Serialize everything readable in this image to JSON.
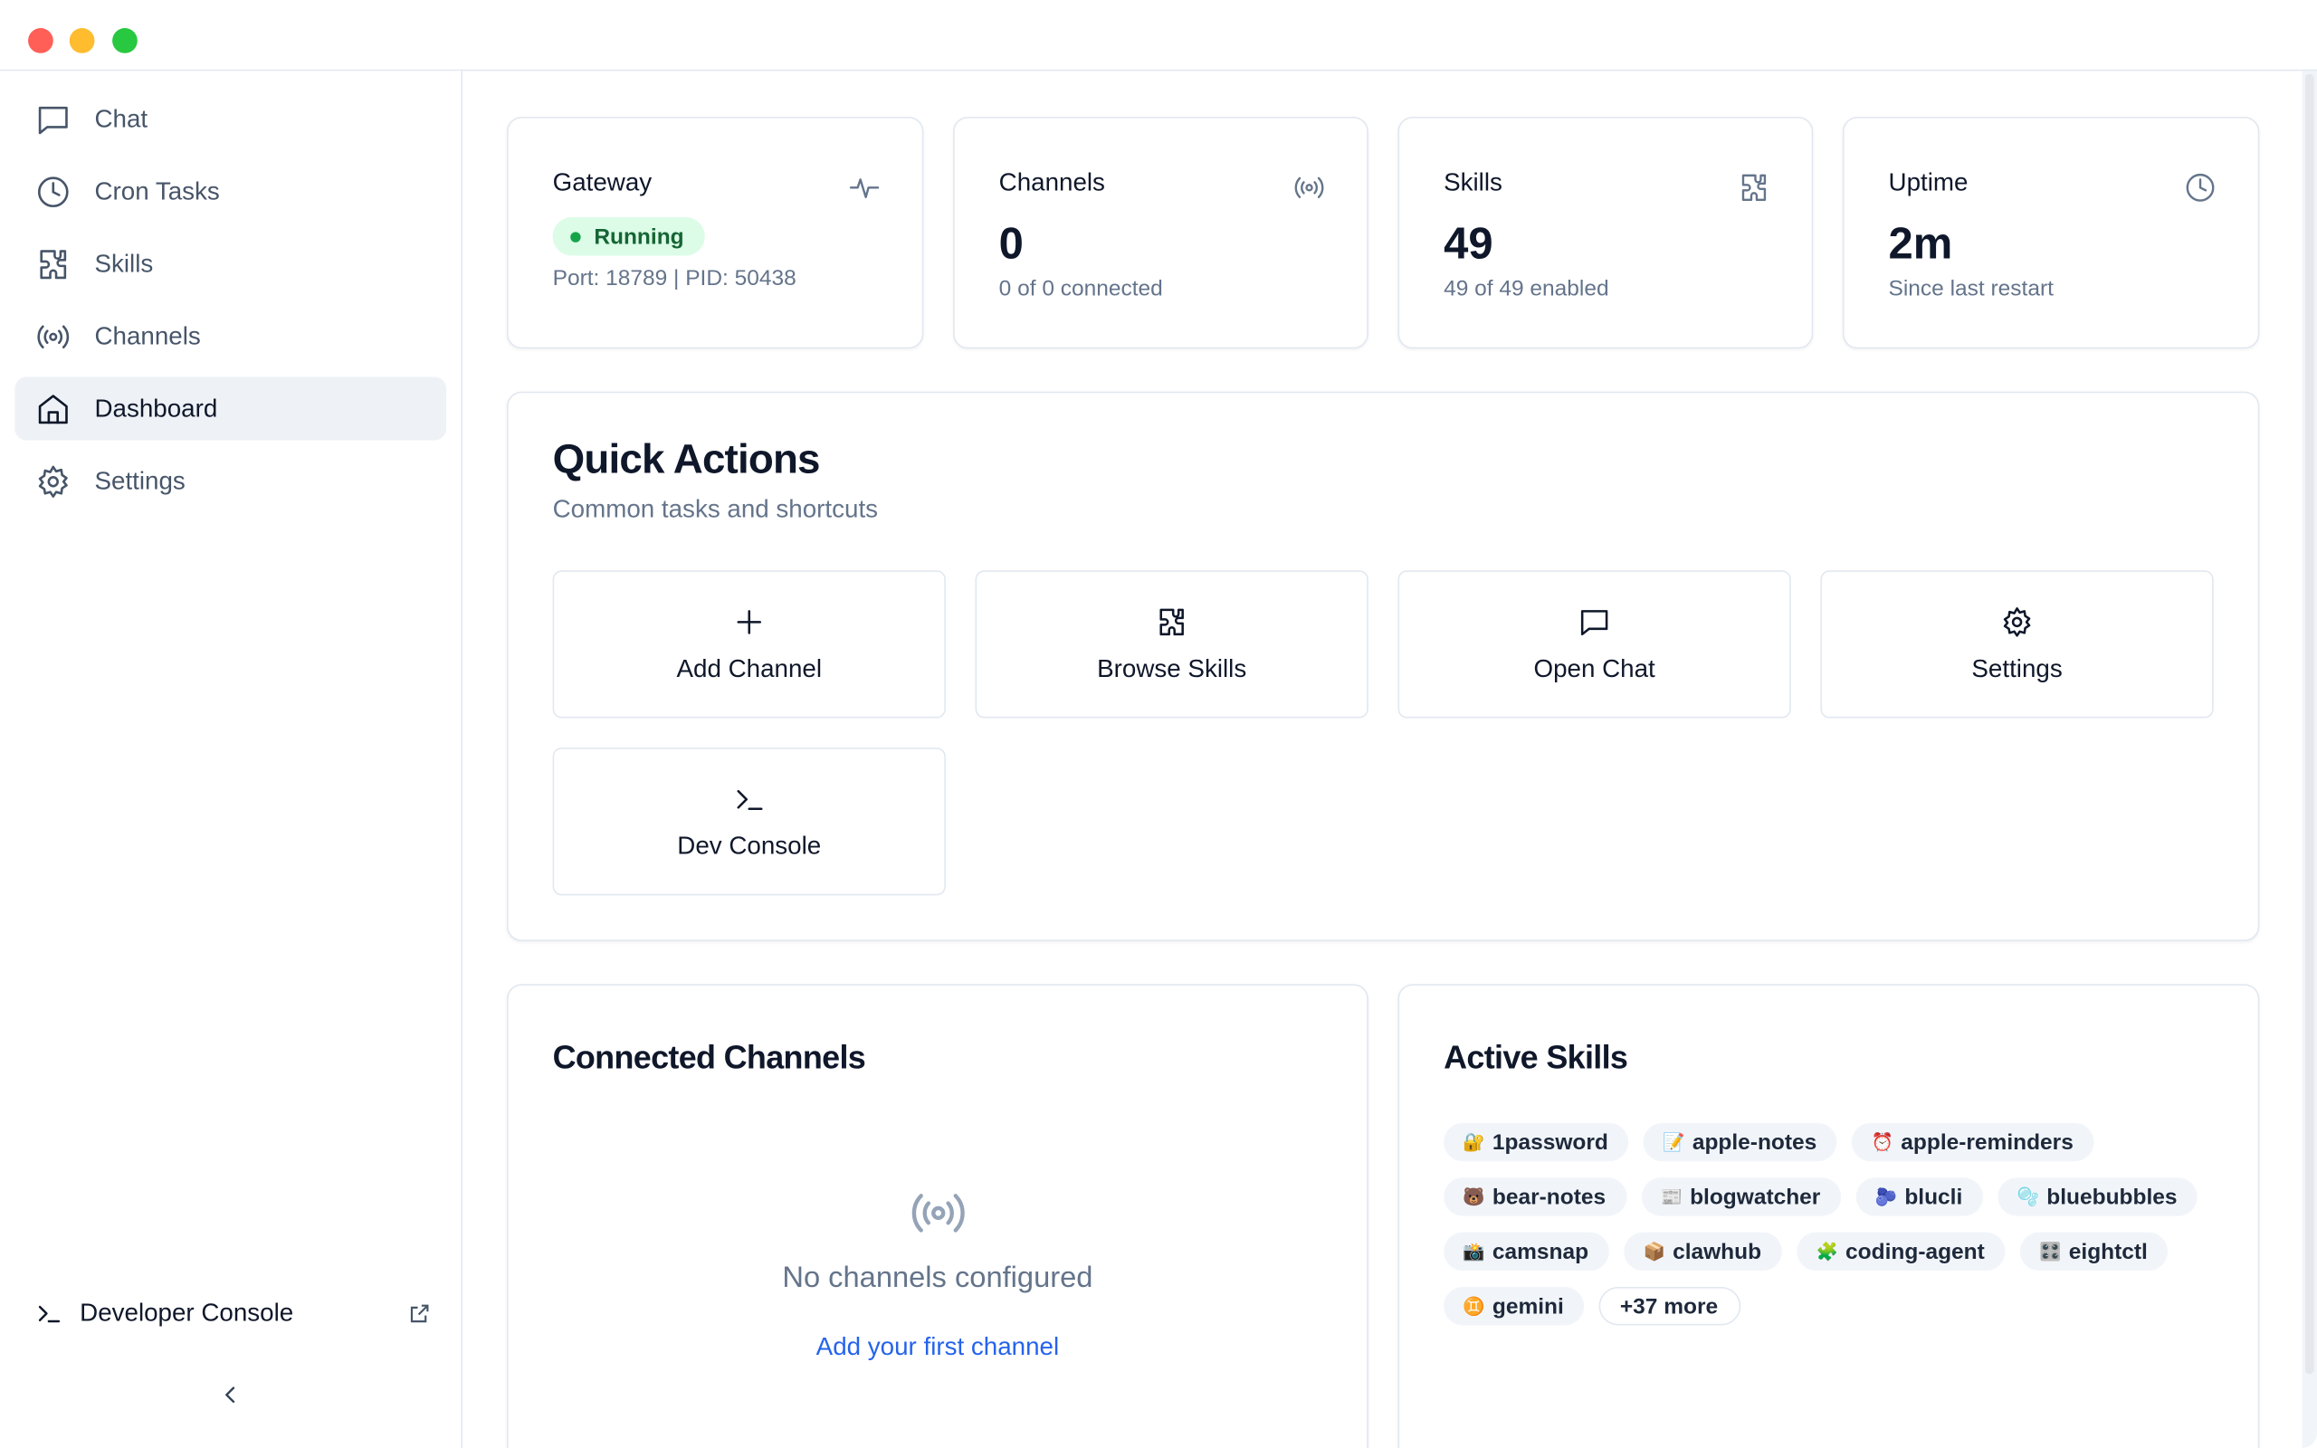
{
  "sidebar": {
    "items": [
      {
        "label": "Chat",
        "icon": "chat-icon"
      },
      {
        "label": "Cron Tasks",
        "icon": "clock-icon"
      },
      {
        "label": "Skills",
        "icon": "puzzle-icon"
      },
      {
        "label": "Channels",
        "icon": "radio-icon"
      },
      {
        "label": "Dashboard",
        "icon": "home-icon",
        "active": true
      },
      {
        "label": "Settings",
        "icon": "gear-icon"
      }
    ],
    "dev_console": "Developer Console"
  },
  "stats": {
    "gateway": {
      "label": "Gateway",
      "status": "Running",
      "detail": "Port: 18789 | PID: 50438"
    },
    "channels": {
      "label": "Channels",
      "value": "0",
      "sub": "0 of 0 connected"
    },
    "skills": {
      "label": "Skills",
      "value": "49",
      "sub": "49 of 49 enabled"
    },
    "uptime": {
      "label": "Uptime",
      "value": "2m",
      "sub": "Since last restart"
    }
  },
  "quick_actions": {
    "title": "Quick Actions",
    "subtitle": "Common tasks and shortcuts",
    "items": [
      "Add Channel",
      "Browse Skills",
      "Open Chat",
      "Settings",
      "Dev Console"
    ]
  },
  "connected_channels": {
    "title": "Connected Channels",
    "empty": "No channels configured",
    "link": "Add your first channel"
  },
  "active_skills": {
    "title": "Active Skills",
    "chips": [
      {
        "emoji": "🔐",
        "name": "1password"
      },
      {
        "emoji": "📝",
        "name": "apple-notes"
      },
      {
        "emoji": "⏰",
        "name": "apple-reminders"
      },
      {
        "emoji": "🐻",
        "name": "bear-notes"
      },
      {
        "emoji": "📰",
        "name": "blogwatcher"
      },
      {
        "emoji": "🫐",
        "name": "blucli"
      },
      {
        "emoji": "🫧",
        "name": "bluebubbles"
      },
      {
        "emoji": "📸",
        "name": "camsnap"
      },
      {
        "emoji": "📦",
        "name": "clawhub"
      },
      {
        "emoji": "🧩",
        "name": "coding-agent"
      },
      {
        "emoji": "🎛️",
        "name": "eightctl"
      },
      {
        "emoji": "♊",
        "name": "gemini"
      }
    ],
    "more": "+37 more"
  },
  "colors": {
    "accent": "#2563eb",
    "running_bg": "#dcfce7",
    "running_text": "#166534"
  }
}
